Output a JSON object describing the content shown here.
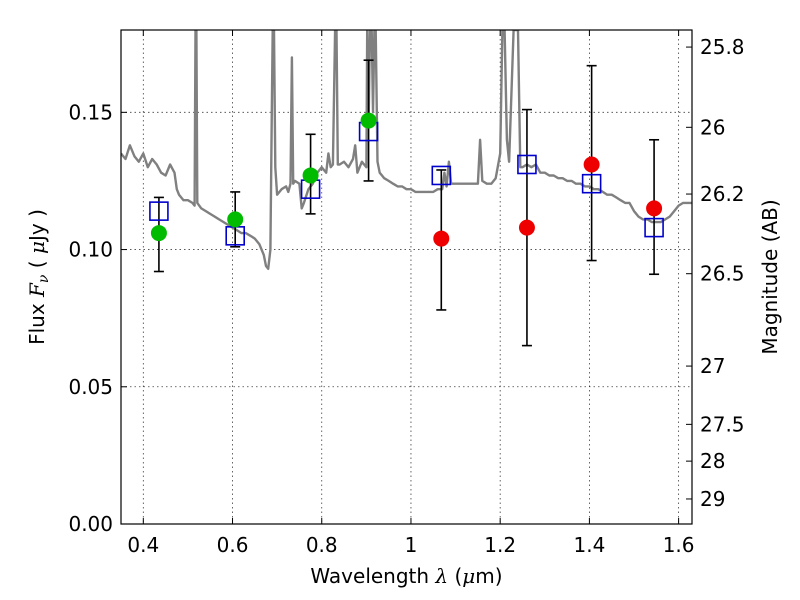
{
  "chart_data": {
    "type": "scatter",
    "xlabel": "Wavelength  λ (μm)",
    "xlabel_parts": [
      "Wavelength  ",
      "λ",
      " (",
      "μ",
      "m)"
    ],
    "ylabel": "Flux  Fν  ( μJy )",
    "ylabel_parts": [
      "Flux  ",
      "F",
      "ν",
      "  ( ",
      "μ",
      "Jy )"
    ],
    "y2label": "Magnitude (AB)",
    "xlim": [
      0.35,
      1.63
    ],
    "ylim": [
      0.0,
      0.18
    ],
    "xticks": [
      {
        "value": 0.4,
        "label": "0.4"
      },
      {
        "value": 0.6,
        "label": "0.6"
      },
      {
        "value": 0.8,
        "label": "0.8"
      },
      {
        "value": 1.0,
        "label": "1"
      },
      {
        "value": 1.2,
        "label": "1.2"
      },
      {
        "value": 1.4,
        "label": "1.4"
      },
      {
        "value": 1.6,
        "label": "1.6"
      }
    ],
    "yticks": [
      {
        "value": 0.0,
        "label": "0.00"
      },
      {
        "value": 0.05,
        "label": "0.05"
      },
      {
        "value": 0.1,
        "label": "0.10"
      },
      {
        "value": 0.15,
        "label": "0.15"
      }
    ],
    "y2ticks": [
      {
        "value": 25.8,
        "label": "25.8"
      },
      {
        "value": 26.0,
        "label": "26"
      },
      {
        "value": 26.2,
        "label": "26.2"
      },
      {
        "value": 26.5,
        "label": "26.5"
      },
      {
        "value": 27.0,
        "label": "27"
      },
      {
        "value": 27.5,
        "label": "27.5"
      },
      {
        "value": 28.0,
        "label": "28"
      },
      {
        "value": 29.0,
        "label": "29"
      }
    ],
    "grid": true,
    "colors": {
      "model": "#808080",
      "green_points": "#00bb00",
      "red_points": "#ee0000",
      "squares": "#0000cc",
      "errorbars": "#000000"
    },
    "model_spectrum": [
      [
        0.35,
        0.135
      ],
      [
        0.36,
        0.133
      ],
      [
        0.37,
        0.138
      ],
      [
        0.38,
        0.134
      ],
      [
        0.39,
        0.132
      ],
      [
        0.4,
        0.135
      ],
      [
        0.41,
        0.13
      ],
      [
        0.42,
        0.133
      ],
      [
        0.43,
        0.131
      ],
      [
        0.44,
        0.128
      ],
      [
        0.45,
        0.127
      ],
      [
        0.46,
        0.131
      ],
      [
        0.47,
        0.128
      ],
      [
        0.475,
        0.122
      ],
      [
        0.48,
        0.12
      ],
      [
        0.49,
        0.118
      ],
      [
        0.5,
        0.118
      ],
      [
        0.51,
        0.117
      ],
      [
        0.515,
        0.116
      ],
      [
        0.517,
        0.18
      ],
      [
        0.519,
        0.18
      ],
      [
        0.521,
        0.117
      ],
      [
        0.53,
        0.115
      ],
      [
        0.54,
        0.114
      ],
      [
        0.55,
        0.113
      ],
      [
        0.56,
        0.112
      ],
      [
        0.57,
        0.111
      ],
      [
        0.58,
        0.11
      ],
      [
        0.59,
        0.109
      ],
      [
        0.6,
        0.108
      ],
      [
        0.61,
        0.107
      ],
      [
        0.62,
        0.106
      ],
      [
        0.63,
        0.106
      ],
      [
        0.64,
        0.105
      ],
      [
        0.65,
        0.104
      ],
      [
        0.66,
        0.102
      ],
      [
        0.67,
        0.098
      ],
      [
        0.675,
        0.094
      ],
      [
        0.68,
        0.093
      ],
      [
        0.685,
        0.1
      ],
      [
        0.688,
        0.15
      ],
      [
        0.69,
        0.18
      ],
      [
        0.693,
        0.18
      ],
      [
        0.696,
        0.13
      ],
      [
        0.7,
        0.12
      ],
      [
        0.71,
        0.122
      ],
      [
        0.72,
        0.123
      ],
      [
        0.725,
        0.121
      ],
      [
        0.73,
        0.124
      ],
      [
        0.733,
        0.17
      ],
      [
        0.736,
        0.124
      ],
      [
        0.74,
        0.125
      ],
      [
        0.75,
        0.124
      ],
      [
        0.755,
        0.115
      ],
      [
        0.76,
        0.117
      ],
      [
        0.77,
        0.122
      ],
      [
        0.78,
        0.124
      ],
      [
        0.79,
        0.128
      ],
      [
        0.8,
        0.13
      ],
      [
        0.81,
        0.128
      ],
      [
        0.815,
        0.135
      ],
      [
        0.82,
        0.13
      ],
      [
        0.825,
        0.131
      ],
      [
        0.83,
        0.18
      ],
      [
        0.833,
        0.18
      ],
      [
        0.836,
        0.131
      ],
      [
        0.84,
        0.131
      ],
      [
        0.85,
        0.132
      ],
      [
        0.86,
        0.13
      ],
      [
        0.87,
        0.133
      ],
      [
        0.875,
        0.138
      ],
      [
        0.88,
        0.128
      ],
      [
        0.89,
        0.132
      ],
      [
        0.9,
        0.13
      ],
      [
        0.902,
        0.18
      ],
      [
        0.905,
        0.145
      ],
      [
        0.908,
        0.18
      ],
      [
        0.912,
        0.18
      ],
      [
        0.915,
        0.15
      ],
      [
        0.918,
        0.18
      ],
      [
        0.921,
        0.18
      ],
      [
        0.925,
        0.132
      ],
      [
        0.93,
        0.128
      ],
      [
        0.94,
        0.126
      ],
      [
        0.95,
        0.125
      ],
      [
        0.96,
        0.124
      ],
      [
        0.97,
        0.123
      ],
      [
        0.98,
        0.123
      ],
      [
        0.99,
        0.122
      ],
      [
        1.0,
        0.122
      ],
      [
        1.01,
        0.121
      ],
      [
        1.02,
        0.121
      ],
      [
        1.03,
        0.121
      ],
      [
        1.04,
        0.121
      ],
      [
        1.05,
        0.121
      ],
      [
        1.06,
        0.122
      ],
      [
        1.07,
        0.122
      ],
      [
        1.075,
        0.128
      ],
      [
        1.08,
        0.123
      ],
      [
        1.085,
        0.132
      ],
      [
        1.09,
        0.124
      ],
      [
        1.1,
        0.124
      ],
      [
        1.11,
        0.124
      ],
      [
        1.12,
        0.124
      ],
      [
        1.13,
        0.124
      ],
      [
        1.14,
        0.124
      ],
      [
        1.15,
        0.124
      ],
      [
        1.155,
        0.14
      ],
      [
        1.16,
        0.125
      ],
      [
        1.17,
        0.124
      ],
      [
        1.18,
        0.124
      ],
      [
        1.19,
        0.126
      ],
      [
        1.2,
        0.135
      ],
      [
        1.205,
        0.18
      ],
      [
        1.21,
        0.18
      ],
      [
        1.215,
        0.14
      ],
      [
        1.22,
        0.132
      ],
      [
        1.23,
        0.18
      ],
      [
        1.24,
        0.18
      ],
      [
        1.245,
        0.13
      ],
      [
        1.25,
        0.13
      ],
      [
        1.26,
        0.131
      ],
      [
        1.27,
        0.13
      ],
      [
        1.28,
        0.131
      ],
      [
        1.29,
        0.128
      ],
      [
        1.3,
        0.128
      ],
      [
        1.31,
        0.127
      ],
      [
        1.32,
        0.127
      ],
      [
        1.33,
        0.126
      ],
      [
        1.34,
        0.126
      ],
      [
        1.35,
        0.125
      ],
      [
        1.36,
        0.125
      ],
      [
        1.37,
        0.124
      ],
      [
        1.38,
        0.124
      ],
      [
        1.39,
        0.123
      ],
      [
        1.4,
        0.123
      ],
      [
        1.41,
        0.122
      ],
      [
        1.42,
        0.122
      ],
      [
        1.43,
        0.121
      ],
      [
        1.44,
        0.12
      ],
      [
        1.45,
        0.12
      ],
      [
        1.46,
        0.119
      ],
      [
        1.47,
        0.118
      ],
      [
        1.48,
        0.117
      ],
      [
        1.49,
        0.117
      ],
      [
        1.5,
        0.114
      ],
      [
        1.51,
        0.112
      ],
      [
        1.52,
        0.111
      ],
      [
        1.53,
        0.111
      ],
      [
        1.54,
        0.11
      ],
      [
        1.55,
        0.11
      ],
      [
        1.56,
        0.11
      ],
      [
        1.57,
        0.111
      ],
      [
        1.58,
        0.112
      ],
      [
        1.59,
        0.114
      ],
      [
        1.6,
        0.116
      ],
      [
        1.61,
        0.117
      ],
      [
        1.62,
        0.117
      ],
      [
        1.63,
        0.117
      ]
    ],
    "squares": [
      {
        "x": 0.435,
        "y": 0.114
      },
      {
        "x": 0.606,
        "y": 0.105
      },
      {
        "x": 0.775,
        "y": 0.122
      },
      {
        "x": 0.905,
        "y": 0.143
      },
      {
        "x": 1.068,
        "y": 0.127
      },
      {
        "x": 1.26,
        "y": 0.131
      },
      {
        "x": 1.405,
        "y": 0.124
      },
      {
        "x": 1.545,
        "y": 0.108
      }
    ],
    "points": [
      {
        "x": 0.435,
        "y": 0.106,
        "color": "green"
      },
      {
        "x": 0.606,
        "y": 0.111,
        "color": "green"
      },
      {
        "x": 0.775,
        "y": 0.127,
        "color": "green"
      },
      {
        "x": 0.905,
        "y": 0.147,
        "color": "green"
      },
      {
        "x": 1.068,
        "y": 0.104,
        "color": "red"
      },
      {
        "x": 1.26,
        "y": 0.108,
        "color": "red"
      },
      {
        "x": 1.405,
        "y": 0.131,
        "color": "red"
      },
      {
        "x": 1.545,
        "y": 0.115,
        "color": "red"
      }
    ],
    "errorbars": [
      {
        "x": 0.435,
        "low": 0.092,
        "high": 0.119
      },
      {
        "x": 0.606,
        "low": 0.101,
        "high": 0.121
      },
      {
        "x": 0.775,
        "low": 0.113,
        "high": 0.142
      },
      {
        "x": 0.905,
        "low": 0.125,
        "high": 0.169
      },
      {
        "x": 1.068,
        "low": 0.078,
        "high": 0.129
      },
      {
        "x": 1.26,
        "low": 0.065,
        "high": 0.151
      },
      {
        "x": 1.405,
        "low": 0.096,
        "high": 0.167
      },
      {
        "x": 1.545,
        "low": 0.091,
        "high": 0.14
      }
    ]
  }
}
